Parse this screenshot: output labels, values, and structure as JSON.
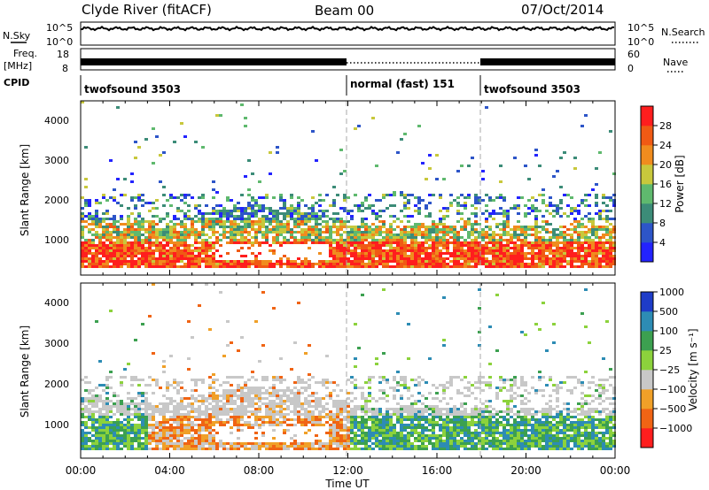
{
  "header": {
    "station": "Clyde River (fitACF)",
    "beam": "Beam 00",
    "date": "07/Oct/2014"
  },
  "top_panels": {
    "nsky": {
      "left_label": "N.Sky",
      "right_label": "N.Search",
      "tick_top": "10^5",
      "tick_bottom": "10^0",
      "level": 0.72
    },
    "freq": {
      "left_label_line1": "Freq.",
      "left_label_line2": "[MHz]",
      "right_label": "Nave",
      "tick_top": "18",
      "tick_bottom": "8",
      "right_tick_top": "60",
      "right_tick_bottom": "0"
    },
    "cpid": {
      "label": "CPID",
      "segments": [
        {
          "name": "twofsound 3503",
          "start_h": 0,
          "end_h": 12
        },
        {
          "name": "normal (fast) 151",
          "start_h": 12,
          "end_h": 18
        },
        {
          "name": "twofsound 3503",
          "start_h": 18,
          "end_h": 24
        }
      ]
    }
  },
  "chart_data": [
    {
      "type": "heatmap",
      "panel": "power",
      "ylabel": "Slant Range [km]",
      "yticks": [
        "1000",
        "2000",
        "3000",
        "4000"
      ],
      "ylim": [
        200,
        4600
      ],
      "xlim": [
        0,
        24
      ],
      "colorbar": {
        "label": "Power [dB]",
        "ticks": [
          "4",
          "8",
          "12",
          "16",
          "20",
          "24",
          "28"
        ],
        "colors": [
          "#2323ff",
          "#2d55c8",
          "#3c8c78",
          "#5fb96e",
          "#c8c83c",
          "#f08c1e",
          "#f05a14",
          "#ff1e1e"
        ]
      }
    },
    {
      "type": "heatmap",
      "panel": "velocity",
      "ylabel": "Slant Range [km]",
      "yticks": [
        "1000",
        "2000",
        "3000",
        "4000"
      ],
      "ylim": [
        200,
        4600
      ],
      "xlim": [
        0,
        24
      ],
      "colorbar": {
        "label": "Velocity [m s⁻¹]",
        "ticks": [
          "1000",
          "500",
          "100",
          "25",
          "−25",
          "−100",
          "−500",
          "−1000"
        ],
        "colors": [
          "#1e3cc8",
          "#2d8cb4",
          "#3ca050",
          "#8cd23c",
          "#c8c8c8",
          "#f0a028",
          "#f06414",
          "#ff1e1e"
        ]
      }
    }
  ],
  "x_axis": {
    "ticks": [
      "00:00",
      "04:00",
      "08:00",
      "12:00",
      "16:00",
      "20:00",
      "00:00"
    ],
    "label": "Time UT"
  }
}
